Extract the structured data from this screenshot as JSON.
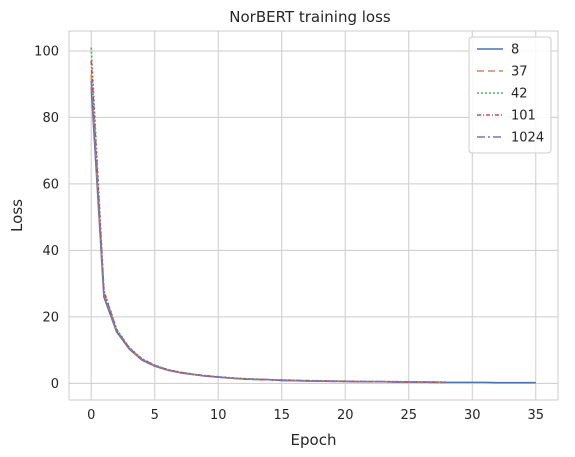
{
  "chart_data": {
    "type": "line",
    "title": "NorBERT training loss",
    "xlabel": "Epoch",
    "ylabel": "Loss",
    "xlim": [
      -1.75,
      36.75
    ],
    "ylim": [
      -5,
      106
    ],
    "xticks": [
      0,
      5,
      10,
      15,
      20,
      25,
      30,
      35
    ],
    "yticks": [
      0,
      20,
      40,
      60,
      80,
      100
    ],
    "grid": true,
    "legend_position": "top-right",
    "series": [
      {
        "name": "8",
        "color": "#4c72b0",
        "dash": "",
        "x": [
          0,
          1,
          2,
          3,
          4,
          5,
          6,
          7,
          8,
          9,
          10,
          11,
          12,
          13,
          14,
          15,
          16,
          17,
          18,
          19,
          20,
          21,
          22,
          23,
          24,
          25,
          26,
          27,
          28,
          29,
          30,
          31,
          32,
          33,
          34,
          35
        ],
        "y": [
          89,
          26,
          15.5,
          10.3,
          7,
          5.2,
          4,
          3.2,
          2.7,
          2.2,
          1.9,
          1.6,
          1.3,
          1.2,
          1.1,
          0.9,
          0.8,
          0.7,
          0.7,
          0.6,
          0.6,
          0.5,
          0.5,
          0.5,
          0.4,
          0.4,
          0.4,
          0.3,
          0.3,
          0.3,
          0.3,
          0.3,
          0.2,
          0.2,
          0.2,
          0.2
        ]
      },
      {
        "name": "37",
        "color": "#dd8452",
        "dash": "7,4",
        "x": [
          0,
          1,
          2,
          3,
          4,
          5,
          6,
          7,
          8,
          9,
          10,
          11,
          12,
          13,
          14,
          15,
          16,
          17,
          18,
          19,
          20,
          21,
          22,
          23,
          24,
          25,
          26,
          27,
          28
        ],
        "y": [
          93,
          27,
          16,
          10.5,
          7.2,
          5.3,
          4.1,
          3.3,
          2.7,
          2.3,
          1.9,
          1.6,
          1.4,
          1.2,
          1.1,
          1,
          0.9,
          0.8,
          0.7,
          0.7,
          0.6,
          0.6,
          0.5,
          0.5,
          0.5,
          0.4,
          0.4,
          0.4,
          0.3
        ]
      },
      {
        "name": "42",
        "color": "#55a868",
        "dash": "2,2",
        "x": [
          0,
          1,
          2,
          3,
          4,
          5,
          6,
          7,
          8,
          9,
          10,
          11,
          12,
          13,
          14,
          15,
          16,
          17,
          18,
          19,
          20,
          21,
          22,
          23,
          24,
          25,
          26,
          27,
          28
        ],
        "y": [
          101,
          28,
          16.3,
          10.8,
          7.4,
          5.5,
          4.2,
          3.4,
          2.8,
          2.3,
          2,
          1.7,
          1.4,
          1.3,
          1.1,
          1,
          0.9,
          0.8,
          0.8,
          0.7,
          0.7,
          0.6,
          0.6,
          0.5,
          0.5,
          0.5,
          0.4,
          0.4,
          0.4
        ]
      },
      {
        "name": "101",
        "color": "#c44e52",
        "dash": "4,2,1,2",
        "x": [
          0,
          1,
          2,
          3,
          4,
          5,
          6,
          7,
          8,
          9,
          10,
          11,
          12,
          13,
          14,
          15,
          16,
          17,
          18,
          19,
          20,
          21,
          22,
          23,
          24,
          25,
          26,
          27,
          28
        ],
        "y": [
          97,
          27.5,
          16.1,
          10.6,
          7.3,
          5.4,
          4.1,
          3.3,
          2.7,
          2.3,
          1.9,
          1.6,
          1.4,
          1.2,
          1.1,
          1,
          0.9,
          0.8,
          0.7,
          0.7,
          0.6,
          0.6,
          0.5,
          0.5,
          0.5,
          0.4,
          0.4,
          0.4,
          0.3
        ]
      },
      {
        "name": "1024",
        "color": "#8172b3",
        "dash": "8,3,2,3",
        "x": [
          0,
          1,
          2,
          3,
          4,
          5,
          6,
          7,
          8,
          9,
          10,
          11,
          12,
          13,
          14,
          15,
          16,
          17,
          18,
          19,
          20,
          21,
          22,
          23,
          24,
          25,
          26,
          27,
          28
        ],
        "y": [
          91,
          26.5,
          15.8,
          10.4,
          7.1,
          5.3,
          4,
          3.2,
          2.7,
          2.2,
          1.9,
          1.6,
          1.3,
          1.2,
          1.1,
          0.9,
          0.8,
          0.8,
          0.7,
          0.6,
          0.6,
          0.5,
          0.5,
          0.5,
          0.4,
          0.4,
          0.4,
          0.3,
          0.3
        ]
      }
    ]
  }
}
